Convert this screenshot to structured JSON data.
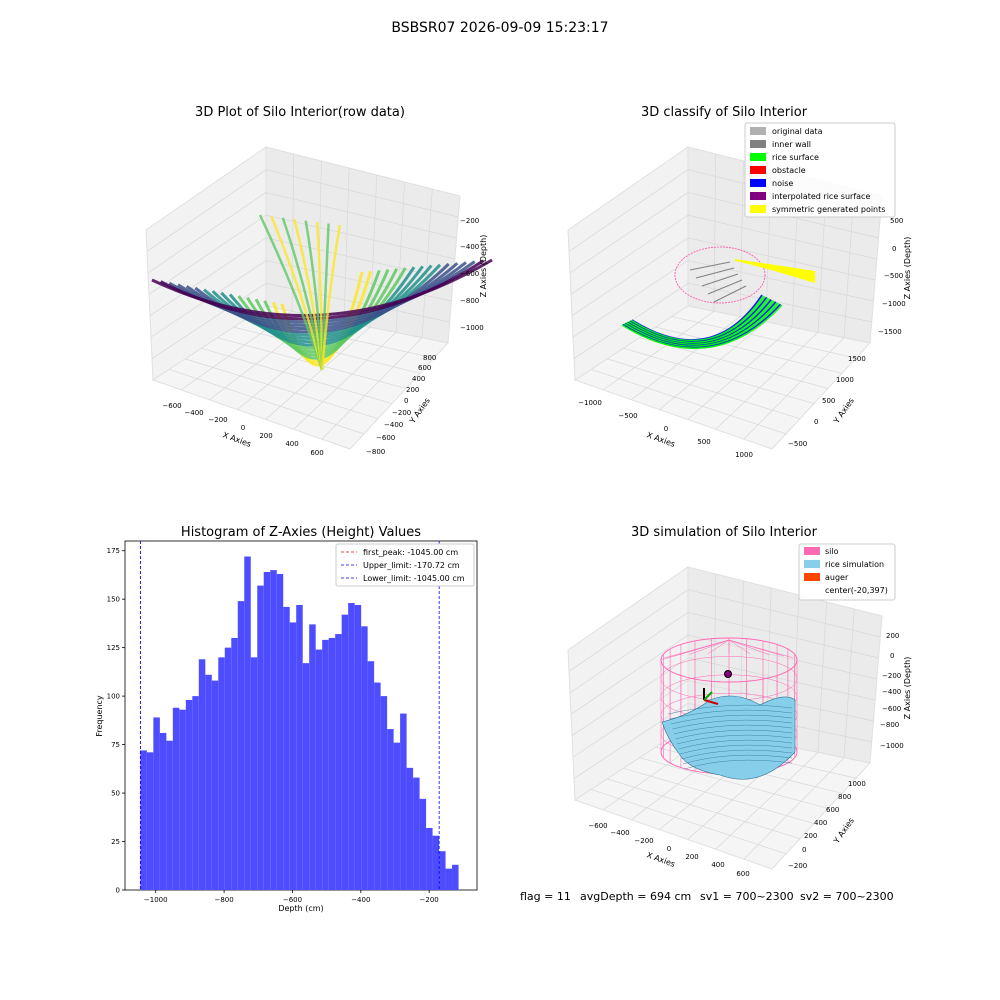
{
  "figure": {
    "suptitle": "BSBSR07 2026-09-09 15:23:17",
    "status_line": {
      "flag": "flag = 11",
      "avg_depth": "avgDepth = 694 cm",
      "sv1": "sv1 = 700~2300",
      "sv2": "sv2 = 700~2300"
    }
  },
  "panels": {
    "raw": {
      "title": "3D Plot of Silo Interior(row data)",
      "xlabel": "X Axies",
      "ylabel": "Y Axies",
      "zlabel": "Z Axies (Depth)",
      "xticks": [
        "−600",
        "−400",
        "−200",
        "0",
        "200",
        "400",
        "600"
      ],
      "yticks": [
        "−800",
        "−600",
        "−400",
        "−200",
        "0",
        "200",
        "400",
        "600",
        "800"
      ],
      "zticks": [
        "−1000",
        "−800",
        "−600",
        "−400",
        "−200"
      ],
      "colormap": [
        "#440154",
        "#3b528b",
        "#21918c",
        "#5ec962",
        "#fde725"
      ]
    },
    "classify": {
      "title": "3D classify of Silo Interior",
      "xlabel": "X Axies",
      "ylabel": "Y Axies",
      "zlabel": "Z Axies (Depth)",
      "xticks": [
        "−1000",
        "−500",
        "0",
        "500",
        "1000"
      ],
      "yticks": [
        "−500",
        "0",
        "500",
        "1000",
        "1500"
      ],
      "zticks": [
        "−1500",
        "−1000",
        "−500",
        "0",
        "500"
      ],
      "legend": [
        {
          "label": "original data",
          "color": "#b0b0b0"
        },
        {
          "label": "inner wall",
          "color": "#808080"
        },
        {
          "label": "rice surface",
          "color": "#00ff00"
        },
        {
          "label": "obstacle",
          "color": "#ff0000"
        },
        {
          "label": "noise",
          "color": "#0000ff"
        },
        {
          "label": "interpolated rice surface",
          "color": "#800080"
        },
        {
          "label": "symmetric generated points",
          "color": "#ffff00"
        }
      ]
    },
    "simulation": {
      "title": "3D simulation of Silo Interior",
      "xlabel": "X Axies",
      "ylabel": "Y Axies",
      "zlabel": "Z Axies (Depth)",
      "xticks": [
        "−600",
        "−400",
        "−200",
        "0",
        "200",
        "400",
        "600"
      ],
      "yticks": [
        "−200",
        "0",
        "200",
        "400",
        "600",
        "800",
        "1000"
      ],
      "zticks": [
        "−1000",
        "−800",
        "−600",
        "−400",
        "−200",
        "0",
        "200"
      ],
      "legend": [
        {
          "label": "silo",
          "color": "#ff69b4"
        },
        {
          "label": "rice simulation",
          "color": "#87ceeb"
        },
        {
          "label": "auger",
          "color": "#ff4500"
        },
        {
          "label": "center(-20,397)",
          "color": "none"
        }
      ]
    }
  },
  "chart_data": {
    "type": "bar",
    "title": "Histogram of Z-Axies (Height) Values",
    "xlabel": "Depth (cm)",
    "ylabel": "Frequency",
    "xlim": [
      -1090,
      -60
    ],
    "ylim": [
      0,
      180
    ],
    "xticks": [
      -1000,
      -800,
      -600,
      -400,
      -200
    ],
    "xtick_labels": [
      "−1000",
      "−800",
      "−600",
      "−400",
      "−200"
    ],
    "yticks": [
      0,
      25,
      50,
      75,
      100,
      125,
      150,
      175
    ],
    "bar_color": "#4d4dff",
    "bin_start": -1045,
    "bin_width": 19.0,
    "values": [
      72,
      71,
      89,
      81,
      77,
      94,
      93,
      98,
      100,
      119,
      111,
      108,
      120,
      125,
      130,
      149,
      172,
      120,
      157,
      164,
      165,
      163,
      146,
      138,
      147,
      117,
      137,
      124,
      129,
      130,
      132,
      142,
      148,
      147,
      136,
      118,
      107,
      100,
      83,
      76,
      91,
      63,
      58,
      47,
      32,
      28,
      20,
      11,
      13
    ],
    "vlines": [
      {
        "label": "first_peak: -1045.00 cm",
        "x": -1045,
        "color": "#ff0000"
      },
      {
        "label": "Upper_limit: -170.72 cm",
        "x": -170.72,
        "color": "#0000ff"
      },
      {
        "label": "Lower_limit: -1045.00 cm",
        "x": -1045,
        "color": "#0000ff"
      }
    ]
  }
}
